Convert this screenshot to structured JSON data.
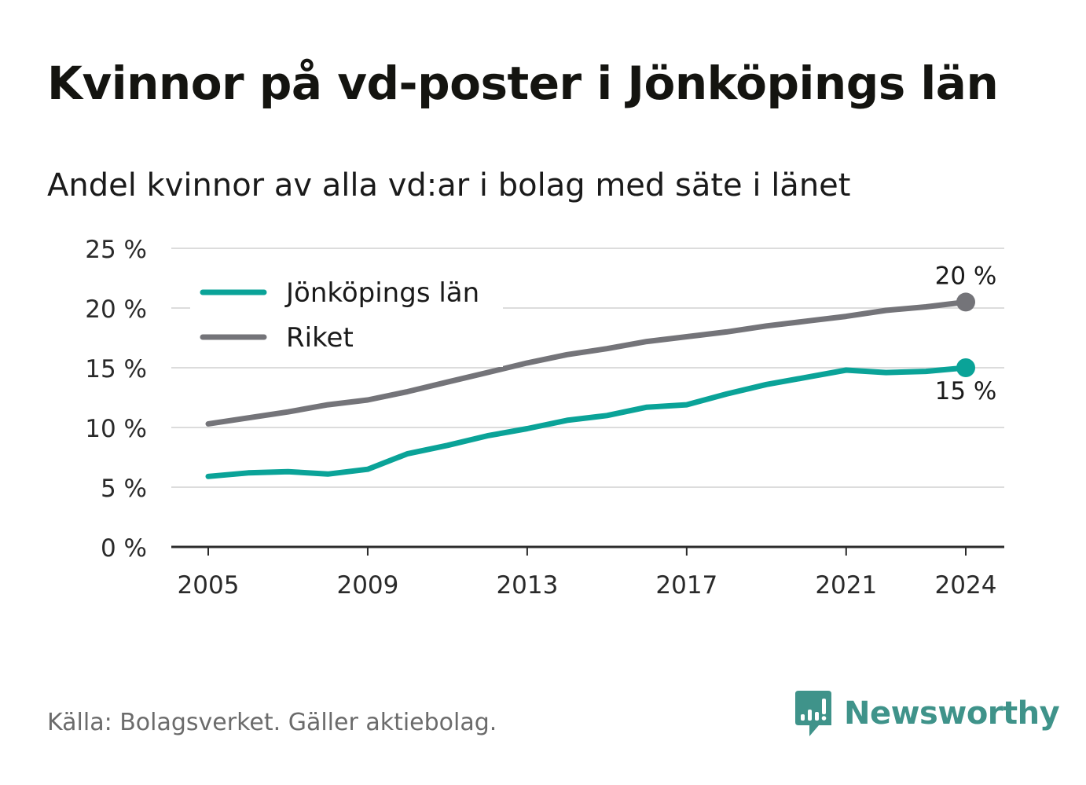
{
  "title": "Kvinnor på vd-poster i Jönköpings län",
  "subtitle": "Andel kvinnor av alla vd:ar i bolag med säte i länet",
  "source": "Källa: Bolagsverket. Gäller aktiebolag.",
  "logo": {
    "text": "Newsworthy",
    "icon": "bar-chart-speech-bubble-icon"
  },
  "colors": {
    "series_lan": "#0aa398",
    "series_riket": "#747479",
    "logo": "#3f938a"
  },
  "chart_data": {
    "type": "line",
    "x": [
      2005,
      2006,
      2007,
      2008,
      2009,
      2010,
      2011,
      2012,
      2013,
      2014,
      2015,
      2016,
      2017,
      2018,
      2019,
      2020,
      2021,
      2022,
      2023,
      2024
    ],
    "series": [
      {
        "name": "Jönköpings län",
        "color": "#0aa398",
        "values": [
          5.9,
          6.2,
          6.3,
          6.1,
          6.5,
          7.8,
          8.5,
          9.3,
          9.9,
          10.6,
          11.0,
          11.7,
          11.9,
          12.8,
          13.6,
          14.2,
          14.8,
          14.6,
          14.7,
          15.0
        ]
      },
      {
        "name": "Riket",
        "color": "#747479",
        "values": [
          10.3,
          10.8,
          11.3,
          11.9,
          12.3,
          13.0,
          13.8,
          14.6,
          15.4,
          16.1,
          16.6,
          17.2,
          17.6,
          18.0,
          18.5,
          18.9,
          19.3,
          19.8,
          20.1,
          20.5
        ]
      }
    ],
    "end_labels": {
      "Jönköpings län": "15 %",
      "Riket": "20 %"
    },
    "xticks": [
      2005,
      2009,
      2013,
      2017,
      2021,
      2024
    ],
    "xtick_labels": [
      "2005",
      "2009",
      "2013",
      "2017",
      "2021",
      "2024"
    ],
    "yticks": [
      0,
      5,
      10,
      15,
      20,
      25
    ],
    "ytick_labels": [
      "0 %",
      "5 %",
      "10 %",
      "15 %",
      "20 %",
      "25 %"
    ],
    "ylim": [
      0,
      25
    ],
    "xlim": [
      2005,
      2024
    ],
    "grid": true,
    "legend_placement": "top-left"
  }
}
